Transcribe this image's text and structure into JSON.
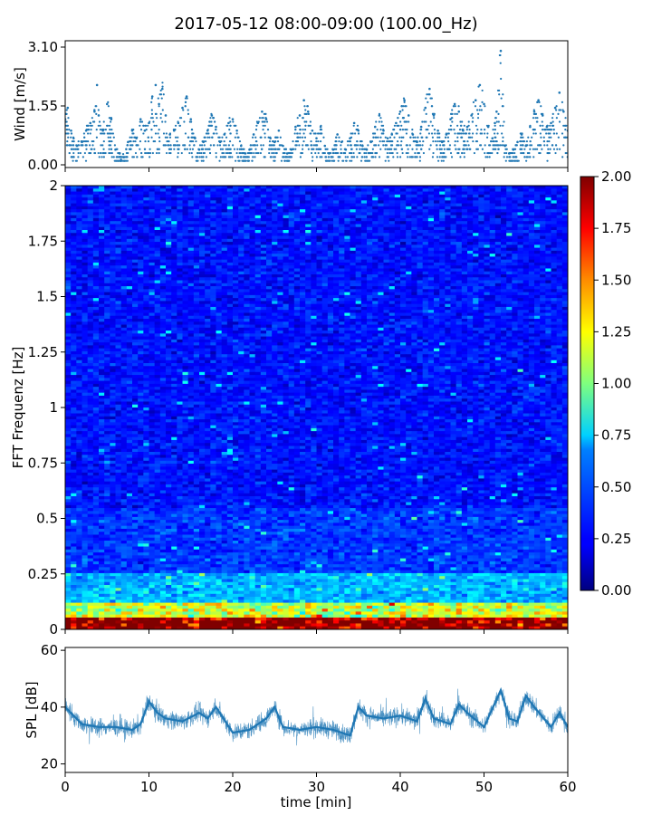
{
  "title": "2017-05-12 08:00-09:00 (100.00_Hz)",
  "chart_data": [
    {
      "type": "scatter",
      "panel": "wind",
      "ylabel": "Wind [m/s]",
      "xlabel": "",
      "xlim": [
        0,
        60
      ],
      "ylim": [
        0.0,
        3.1
      ],
      "yticks": [
        "0.00",
        "1.55",
        "3.10"
      ],
      "marker_color": "#1f77b4",
      "series": [
        {
          "x": [
            0.0,
            0.3,
            0.7,
            1.0,
            1.4,
            2.0,
            2.5,
            3.0,
            3.5,
            3.8,
            4.0,
            4.5,
            5.0,
            5.5,
            6.0,
            6.5,
            7.0,
            7.5,
            8.0,
            8.5,
            9.0,
            9.5,
            10.0,
            10.4,
            10.8,
            11.2,
            11.6,
            12.0,
            12.5,
            13.0,
            13.5,
            14.0,
            14.5,
            15.0,
            15.5,
            16.0,
            16.5,
            17.0,
            17.5,
            18.0,
            18.5,
            19.0,
            19.5,
            20.0,
            20.5,
            21.0,
            21.5,
            22.0,
            22.5,
            23.0,
            23.5,
            24.0,
            24.5,
            25.0,
            25.5,
            26.0,
            26.5,
            27.0,
            27.5,
            28.0,
            28.5,
            29.0,
            29.5,
            30.0,
            30.5,
            31.0,
            31.5,
            32.0,
            32.5,
            33.0,
            33.5,
            34.0,
            34.5,
            35.0,
            35.5,
            36.0,
            36.5,
            37.0,
            37.5,
            38.0,
            38.5,
            39.0,
            39.5,
            40.0,
            40.5,
            41.0,
            41.5,
            42.0,
            42.5,
            43.0,
            43.5,
            44.0,
            44.5,
            45.0,
            45.5,
            46.0,
            46.5,
            47.0,
            47.5,
            48.0,
            48.5,
            49.0,
            49.5,
            50.0,
            50.5,
            51.0,
            51.3,
            51.5,
            52.0,
            52.5,
            53.0,
            53.5,
            54.0,
            54.5,
            55.0,
            55.5,
            56.0,
            56.5,
            57.0,
            57.5,
            58.0,
            58.5,
            59.0,
            59.5,
            60.0
          ],
          "y": [
            1.2,
            1.5,
            0.9,
            0.7,
            0.5,
            0.6,
            0.9,
            1.1,
            1.4,
            2.1,
            1.3,
            0.9,
            1.6,
            1.2,
            0.4,
            0.3,
            0.2,
            0.6,
            0.9,
            0.7,
            1.2,
            0.9,
            1.1,
            1.8,
            2.1,
            1.6,
            2.0,
            1.3,
            0.8,
            0.9,
            1.1,
            1.5,
            1.8,
            1.2,
            0.7,
            0.4,
            0.6,
            0.9,
            1.3,
            1.0,
            0.6,
            0.8,
            1.1,
            1.2,
            0.9,
            0.5,
            0.3,
            0.4,
            0.8,
            1.1,
            1.4,
            1.2,
            0.7,
            0.6,
            0.9,
            0.5,
            0.3,
            0.4,
            1.0,
            1.3,
            1.7,
            1.4,
            0.9,
            0.7,
            1.0,
            0.5,
            0.3,
            0.4,
            0.8,
            0.6,
            0.4,
            0.7,
            1.1,
            0.9,
            0.5,
            0.4,
            0.6,
            1.0,
            1.3,
            0.9,
            0.7,
            0.8,
            1.1,
            1.4,
            1.7,
            1.3,
            0.8,
            0.6,
            1.0,
            1.5,
            2.0,
            1.3,
            0.9,
            0.6,
            0.8,
            1.2,
            1.6,
            1.4,
            0.9,
            1.0,
            1.3,
            1.7,
            2.1,
            1.6,
            1.0,
            0.7,
            1.1,
            1.4,
            3.0,
            0.5,
            0.3,
            0.4,
            0.6,
            0.8,
            0.5,
            1.0,
            1.4,
            1.7,
            1.3,
            1.0,
            1.1,
            1.5,
            1.9,
            1.4,
            0.9
          ]
        }
      ]
    },
    {
      "type": "heatmap",
      "panel": "spectrogram",
      "ylabel": "FFT Frequenz [Hz]",
      "xlabel": "",
      "xlim": [
        0,
        60
      ],
      "ylim": [
        0,
        2
      ],
      "yticks": [
        "0",
        "0.25",
        "0.5",
        "0.75",
        "1",
        "1.25",
        "1.5",
        "1.75",
        "2"
      ],
      "colormap": "jet",
      "colorbar": {
        "range": [
          0.0,
          2.0
        ],
        "ticks": [
          "0.00",
          "0.25",
          "0.50",
          "0.75",
          "1.00",
          "1.25",
          "1.50",
          "1.75",
          "2.00"
        ]
      }
    },
    {
      "type": "area",
      "panel": "spl",
      "ylabel": "SPL [dB]",
      "xlabel": "time [min]",
      "xlim": [
        0,
        60
      ],
      "ylim": [
        17,
        61
      ],
      "yticks": [
        "20",
        "40",
        "60"
      ],
      "xticks": [
        "0",
        "10",
        "20",
        "30",
        "40",
        "50",
        "60"
      ],
      "line_color": "#1f77b4",
      "series": [
        {
          "x": [
            0,
            2,
            4,
            6,
            8,
            9,
            10,
            11,
            12,
            14,
            16,
            17,
            18,
            20,
            22,
            24,
            25,
            26,
            28,
            30,
            32,
            34,
            35,
            36,
            38,
            40,
            42,
            43,
            44,
            46,
            47,
            48,
            50,
            52,
            53,
            54,
            55,
            56,
            58,
            59,
            60
          ],
          "y": [
            40,
            34,
            33,
            33,
            32,
            34,
            42,
            38,
            36,
            35,
            38,
            36,
            40,
            31,
            32,
            36,
            40,
            33,
            32,
            33,
            32,
            30,
            40,
            37,
            36,
            37,
            35,
            43,
            36,
            34,
            41,
            38,
            33,
            46,
            36,
            35,
            44,
            40,
            33,
            38,
            33
          ]
        }
      ]
    }
  ]
}
